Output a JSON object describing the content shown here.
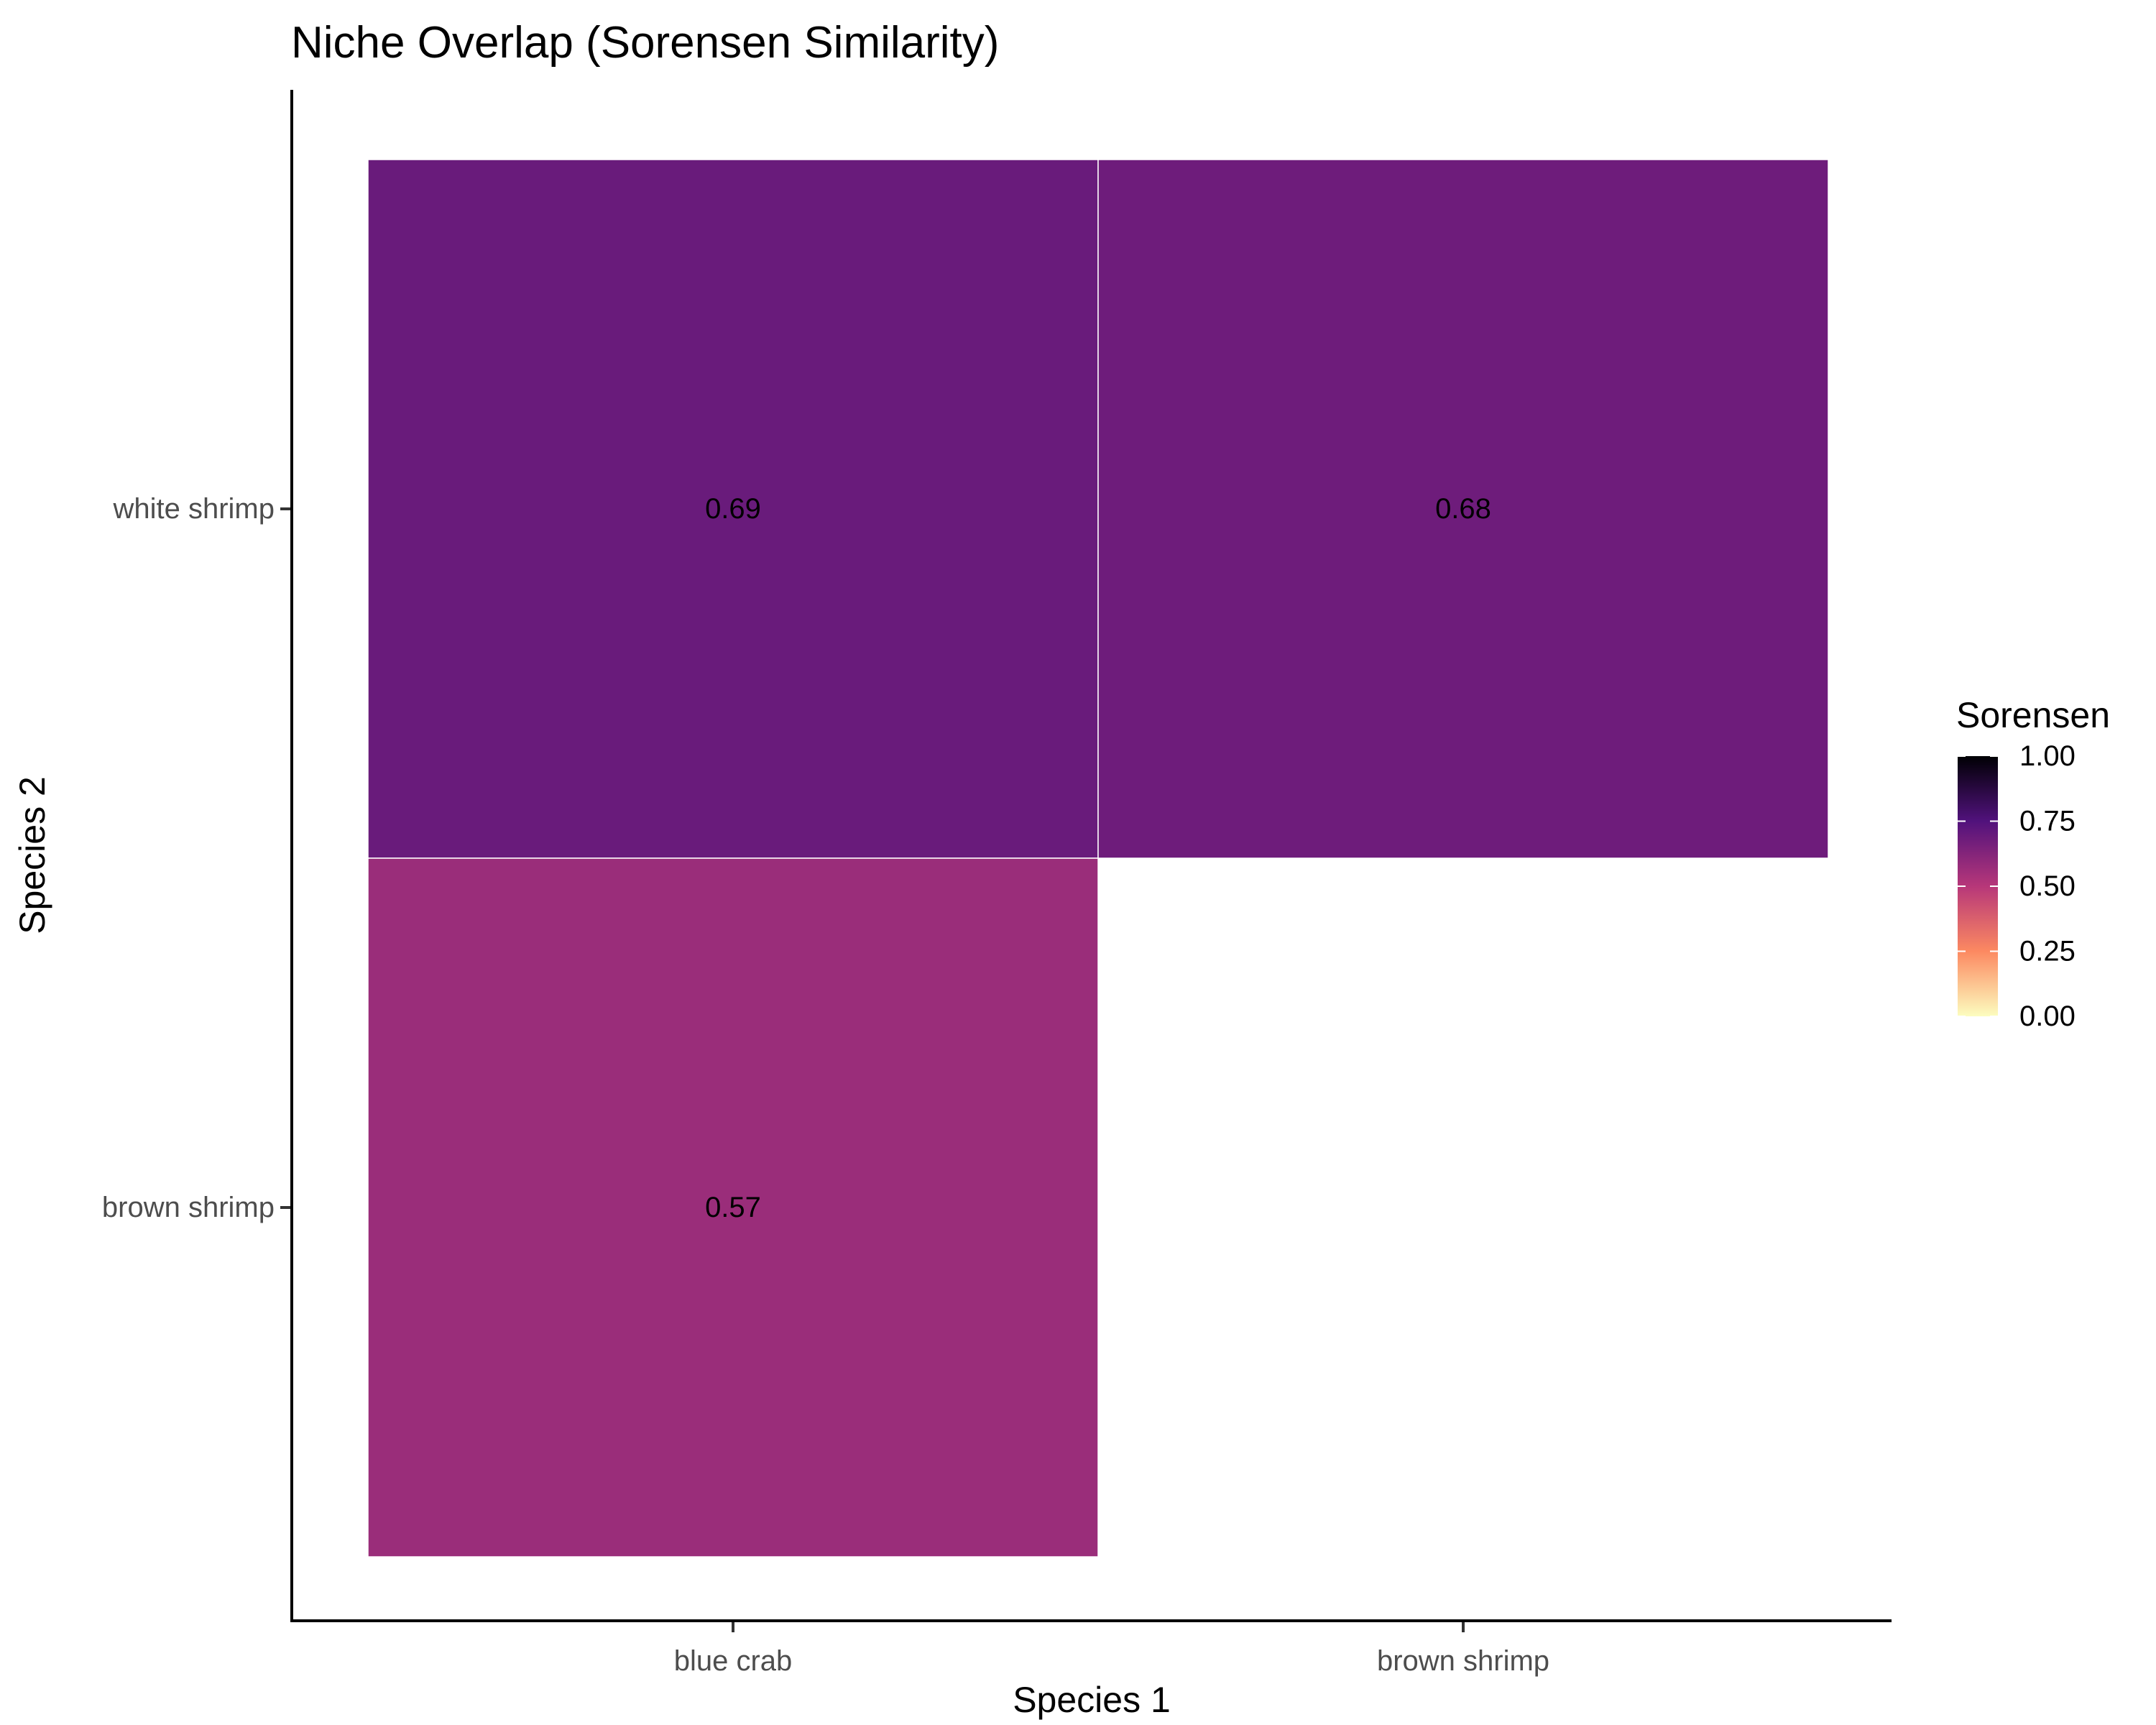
{
  "chart_data": {
    "type": "heatmap",
    "title": "Niche Overlap (Sorensen Similarity)",
    "xlabel": "Species 1",
    "ylabel": "Species 2",
    "x_categories": [
      "blue crab",
      "brown shrimp"
    ],
    "y_categories": [
      "brown shrimp",
      "white shrimp"
    ],
    "cells": [
      {
        "x": "blue crab",
        "y": "white shrimp",
        "value": 0.69,
        "label": "0.69"
      },
      {
        "x": "brown shrimp",
        "y": "white shrimp",
        "value": 0.68,
        "label": "0.68"
      },
      {
        "x": "blue crab",
        "y": "brown shrimp",
        "value": 0.57,
        "label": "0.57"
      }
    ],
    "legend": {
      "title": "Sorensen",
      "position": "right",
      "range": [
        0,
        1
      ],
      "ticks": [
        "0.00",
        "0.25",
        "0.50",
        "0.75",
        "1.00"
      ],
      "tick_values": [
        0,
        0.25,
        0.5,
        0.75,
        1
      ],
      "colors": [
        "#fcfdbf",
        "#fc8961",
        "#b73779",
        "#51127c",
        "#000004"
      ]
    },
    "grid": false
  }
}
